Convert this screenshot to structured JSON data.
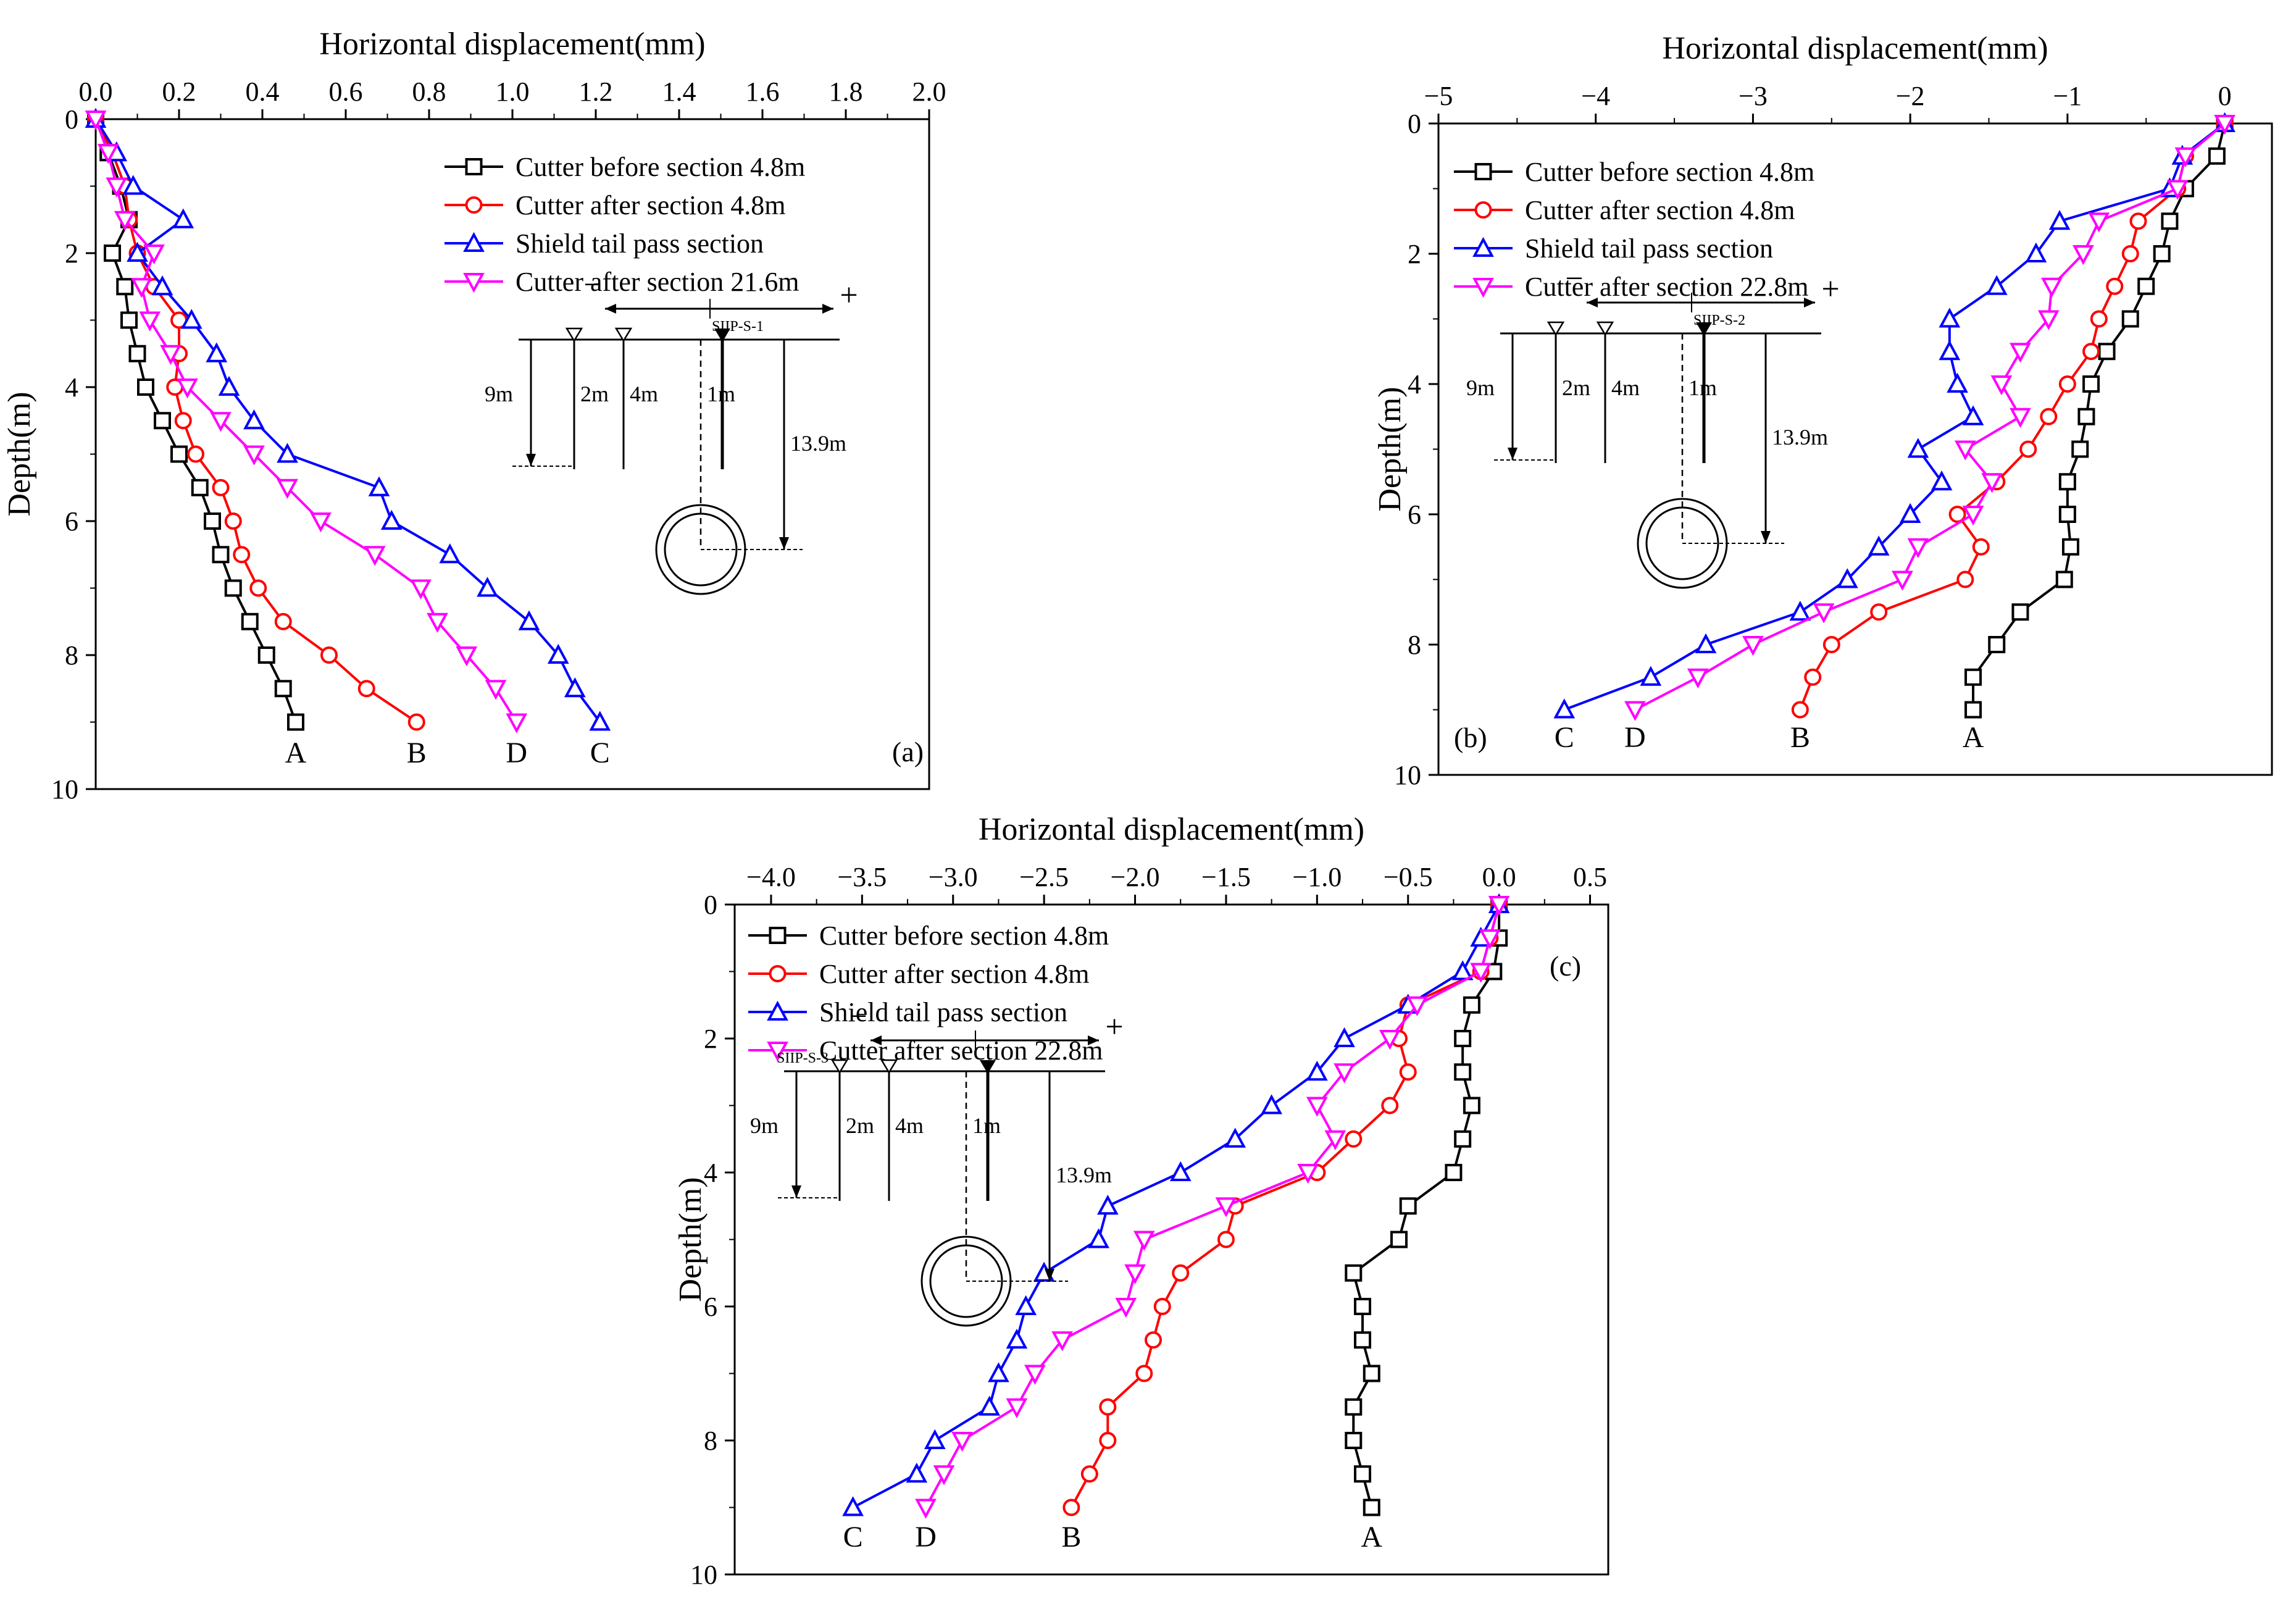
{
  "chart_data": [
    {
      "type": "line",
      "panel": "(a)",
      "xlabel": "Horizontal displacement(mm)",
      "ylabel": "Depth(m)",
      "xlim": [
        0.0,
        2.0
      ],
      "ylim": [
        0,
        10
      ],
      "xticks": [
        "0.0",
        "0.2",
        "0.4",
        "0.6",
        "0.8",
        "1.0",
        "1.2",
        "1.4",
        "1.6",
        "1.8",
        "2.0"
      ],
      "yticks": [
        "0",
        "2",
        "4",
        "6",
        "8",
        "10"
      ],
      "y": [
        0,
        0.5,
        1,
        1.5,
        2,
        2.5,
        3,
        3.5,
        4,
        4.5,
        5,
        5.5,
        6,
        6.5,
        7,
        7.5,
        8,
        8.5,
        9
      ],
      "series": [
        {
          "name": "Cutter before section 4.8m",
          "label": "A",
          "color": "#000000",
          "marker": "square",
          "x": [
            0,
            0.03,
            0.06,
            0.08,
            0.04,
            0.07,
            0.08,
            0.1,
            0.12,
            0.16,
            0.2,
            0.25,
            0.28,
            0.3,
            0.33,
            0.37,
            0.41,
            0.45,
            0.48
          ]
        },
        {
          "name": "Cutter after section 4.8m",
          "label": "B",
          "color": "#ff0000",
          "marker": "circle",
          "x": [
            0,
            0.04,
            0.07,
            0.08,
            0.1,
            0.14,
            0.2,
            0.2,
            0.19,
            0.21,
            0.24,
            0.3,
            0.33,
            0.35,
            0.39,
            0.45,
            0.56,
            0.65,
            0.77
          ]
        },
        {
          "name": "Shield tail pass section",
          "label": "C",
          "color": "#0000ff",
          "marker": "triangle-up",
          "x": [
            0,
            0.05,
            0.09,
            0.21,
            0.1,
            0.16,
            0.23,
            0.29,
            0.32,
            0.38,
            0.46,
            0.68,
            0.71,
            0.85,
            0.94,
            1.04,
            1.11,
            1.15,
            1.21
          ]
        },
        {
          "name": "Cutter after section 21.6m",
          "label": "D",
          "color": "#ff00ff",
          "marker": "triangle-down",
          "x": [
            0,
            0.03,
            0.05,
            0.07,
            0.14,
            0.11,
            0.13,
            0.18,
            0.22,
            0.3,
            0.38,
            0.46,
            0.54,
            0.67,
            0.78,
            0.82,
            0.89,
            0.96,
            1.01
          ]
        }
      ],
      "legend": "top-right",
      "inset": {
        "title": "SIIP-S-1",
        "minus": "−",
        "plus": "+",
        "labels": [
          "9m",
          "2m",
          "4m",
          "1m",
          "13.9m"
        ]
      }
    },
    {
      "type": "line",
      "panel": "(b)",
      "xlabel": "Horizontal displacement(mm)",
      "ylabel": "Depth(m)",
      "xlim": [
        -5,
        0.3
      ],
      "ylim": [
        0,
        10
      ],
      "xticks": [
        "−5",
        "−4",
        "−3",
        "−2",
        "−1",
        "0"
      ],
      "yticks": [
        "0",
        "2",
        "4",
        "6",
        "8",
        "10"
      ],
      "y": [
        0,
        0.5,
        1,
        1.5,
        2,
        2.5,
        3,
        3.5,
        4,
        4.5,
        5,
        5.5,
        6,
        6.5,
        7,
        7.5,
        8,
        8.5,
        9
      ],
      "series": [
        {
          "name": "Cutter before section 4.8m",
          "label": "A",
          "color": "#000000",
          "marker": "square",
          "x": [
            0,
            -0.05,
            -0.25,
            -0.35,
            -0.4,
            -0.5,
            -0.6,
            -0.75,
            -0.85,
            -0.88,
            -0.92,
            -1.0,
            -1.0,
            -0.98,
            -1.02,
            -1.3,
            -1.45,
            -1.6,
            -1.6
          ]
        },
        {
          "name": "Cutter after section 4.8m",
          "label": "B",
          "color": "#ff0000",
          "marker": "circle",
          "x": [
            0,
            -0.25,
            -0.3,
            -0.55,
            -0.6,
            -0.7,
            -0.8,
            -0.85,
            -1.0,
            -1.12,
            -1.25,
            -1.45,
            -1.7,
            -1.55,
            -1.65,
            -2.2,
            -2.5,
            -2.62,
            -2.7
          ]
        },
        {
          "name": "Shield tail pass section",
          "label": "C",
          "color": "#0000ff",
          "marker": "triangle-up",
          "x": [
            0,
            -0.27,
            -0.35,
            -1.05,
            -1.2,
            -1.45,
            -1.75,
            -1.75,
            -1.7,
            -1.6,
            -1.95,
            -1.8,
            -2.0,
            -2.2,
            -2.4,
            -2.7,
            -3.3,
            -3.65,
            -4.2
          ]
        },
        {
          "name": "Cutter after section 22.8m",
          "label": "D",
          "color": "#ff00ff",
          "marker": "triangle-down",
          "x": [
            0,
            -0.25,
            -0.3,
            -0.8,
            -0.9,
            -1.1,
            -1.12,
            -1.3,
            -1.42,
            -1.3,
            -1.65,
            -1.48,
            -1.6,
            -1.95,
            -2.05,
            -2.55,
            -3.0,
            -3.35,
            -3.75
          ]
        }
      ],
      "legend": "top-left",
      "inset": {
        "title": "SIIP-S-2",
        "minus": "−",
        "plus": "+",
        "labels": [
          "9m",
          "2m",
          "4m",
          "1m",
          "13.9m"
        ]
      }
    },
    {
      "type": "line",
      "panel": "(c)",
      "xlabel": "Horizontal displacement(mm)",
      "ylabel": "Depth(m)",
      "xlim": [
        -4.2,
        0.6
      ],
      "ylim": [
        0,
        10
      ],
      "xticks": [
        "−4.0",
        "−3.5",
        "−3.0",
        "−2.5",
        "−2.0",
        "−1.5",
        "−1.0",
        "−0.5",
        "0.0",
        "0.5"
      ],
      "yticks": [
        "0",
        "2",
        "4",
        "6",
        "8",
        "10"
      ],
      "y": [
        0,
        0.5,
        1,
        1.5,
        2,
        2.5,
        3,
        3.5,
        4,
        4.5,
        5,
        5.5,
        6,
        6.5,
        7,
        7.5,
        8,
        8.5,
        9
      ],
      "series": [
        {
          "name": "Cutter before section 4.8m",
          "label": "A",
          "color": "#000000",
          "marker": "square",
          "x": [
            0,
            0,
            -0.03,
            -0.15,
            -0.2,
            -0.2,
            -0.15,
            -0.2,
            -0.25,
            -0.5,
            -0.55,
            -0.8,
            -0.75,
            -0.75,
            -0.7,
            -0.8,
            -0.8,
            -0.75,
            -0.7
          ]
        },
        {
          "name": "Cutter after section 4.8m",
          "label": "B",
          "color": "#ff0000",
          "marker": "circle",
          "x": [
            0,
            -0.05,
            -0.1,
            -0.5,
            -0.55,
            -0.5,
            -0.6,
            -0.8,
            -1.0,
            -1.45,
            -1.5,
            -1.75,
            -1.85,
            -1.9,
            -1.95,
            -2.15,
            -2.15,
            -2.25,
            -2.35
          ]
        },
        {
          "name": "Shield tail pass section",
          "label": "C",
          "color": "#0000ff",
          "marker": "triangle-up",
          "x": [
            0,
            -0.1,
            -0.2,
            -0.5,
            -0.85,
            -1.0,
            -1.25,
            -1.45,
            -1.75,
            -2.15,
            -2.2,
            -2.5,
            -2.6,
            -2.65,
            -2.75,
            -2.8,
            -3.1,
            -3.2,
            -3.55
          ]
        },
        {
          "name": "Cutter after section 22.8m",
          "label": "D",
          "color": "#ff00ff",
          "marker": "triangle-down",
          "x": [
            0,
            -0.05,
            -0.1,
            -0.45,
            -0.6,
            -0.85,
            -1.0,
            -0.9,
            -1.05,
            -1.5,
            -1.95,
            -2.0,
            -2.05,
            -2.4,
            -2.55,
            -2.65,
            -2.95,
            -3.05,
            -3.15
          ]
        }
      ],
      "legend": "top-left",
      "inset": {
        "title": "SIIP-S-3",
        "minus": "−",
        "plus": "+",
        "labels": [
          "9m",
          "2m",
          "4m",
          "1m",
          "13.9m"
        ]
      }
    }
  ]
}
